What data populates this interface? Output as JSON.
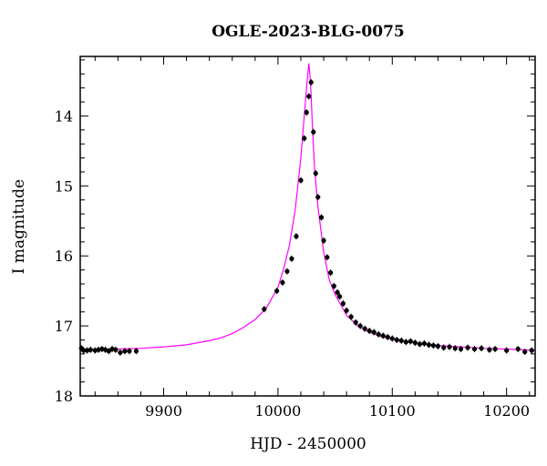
{
  "chart_data": {
    "type": "scatter",
    "title": "OGLE-2023-BLG-0075",
    "xlabel": "HJD - 2450000",
    "ylabel": "I magnitude",
    "xlim": [
      9827,
      10225
    ],
    "ylim": [
      18.0,
      13.15
    ],
    "y_inverted": true,
    "x_ticks": [
      9900,
      10000,
      10100,
      10200
    ],
    "x_tick_labels": [
      "9900",
      "10000",
      "10100",
      "10200"
    ],
    "y_ticks": [
      14,
      15,
      16,
      17,
      18
    ],
    "y_tick_labels": [
      "14",
      "15",
      "16",
      "17",
      "18"
    ],
    "x_minor_step": 20,
    "y_minor_step": 0.2,
    "grid": false,
    "colors": {
      "model": "#ff00ff",
      "points": "#000000",
      "axes": "#000000"
    },
    "model_curve": {
      "color": "#ff00ff",
      "x": [
        9827,
        9840,
        9860,
        9880,
        9900,
        9920,
        9940,
        9950,
        9960,
        9970,
        9980,
        9990,
        10000,
        10005,
        10010,
        10015,
        10020,
        10023,
        10025,
        10026,
        10027,
        10028,
        10029,
        10030,
        10032,
        10035,
        10040,
        10045,
        10050,
        10060,
        10070,
        10080,
        10090,
        10100,
        10120,
        10140,
        10160,
        10180,
        10200,
        10225
      ],
      "y": [
        17.35,
        17.34,
        17.33,
        17.32,
        17.3,
        17.27,
        17.21,
        17.17,
        17.11,
        17.02,
        16.91,
        16.74,
        16.45,
        16.18,
        15.85,
        15.35,
        14.6,
        14.0,
        13.6,
        13.42,
        13.25,
        13.42,
        13.7,
        14.1,
        14.75,
        15.3,
        15.95,
        16.35,
        16.55,
        16.85,
        17.0,
        17.09,
        17.15,
        17.19,
        17.24,
        17.28,
        17.3,
        17.32,
        17.33,
        17.35
      ]
    },
    "series": [
      {
        "type": "scatter",
        "x": [
          9828,
          9830,
          9833,
          9836,
          9840,
          9843,
          9846,
          9849,
          9852,
          9855,
          9858,
          9862,
          9866,
          9870,
          9876,
          9988,
          9999,
          10004,
          10008,
          10012,
          10016,
          10020,
          10023,
          10025,
          10027,
          10029,
          10031,
          10033,
          10035,
          10038,
          10040,
          10043,
          10046,
          10049,
          10052,
          10054,
          10057,
          10060,
          10064,
          10068,
          10072,
          10076,
          10080,
          10084,
          10088,
          10092,
          10096,
          10100,
          10104,
          10108,
          10112,
          10116,
          10120,
          10124,
          10128,
          10132,
          10136,
          10140,
          10145,
          10150,
          10155,
          10160,
          10166,
          10172,
          10178,
          10185,
          10190,
          10200,
          10210,
          10216,
          10222
        ],
        "y": [
          17.32,
          17.35,
          17.35,
          17.34,
          17.35,
          17.34,
          17.33,
          17.34,
          17.36,
          17.33,
          17.34,
          17.38,
          17.36,
          17.36,
          17.36,
          16.76,
          16.5,
          16.38,
          16.22,
          16.04,
          15.72,
          14.92,
          14.32,
          13.95,
          13.72,
          13.52,
          14.23,
          14.82,
          15.16,
          15.45,
          15.78,
          16.02,
          16.24,
          16.43,
          16.52,
          16.58,
          16.68,
          16.78,
          16.87,
          16.95,
          17.0,
          17.04,
          17.07,
          17.09,
          17.12,
          17.14,
          17.16,
          17.18,
          17.2,
          17.21,
          17.23,
          17.22,
          17.24,
          17.26,
          17.25,
          17.27,
          17.28,
          17.29,
          17.31,
          17.3,
          17.32,
          17.33,
          17.31,
          17.33,
          17.32,
          17.34,
          17.33,
          17.35,
          17.33,
          17.37,
          17.35
        ]
      }
    ]
  }
}
